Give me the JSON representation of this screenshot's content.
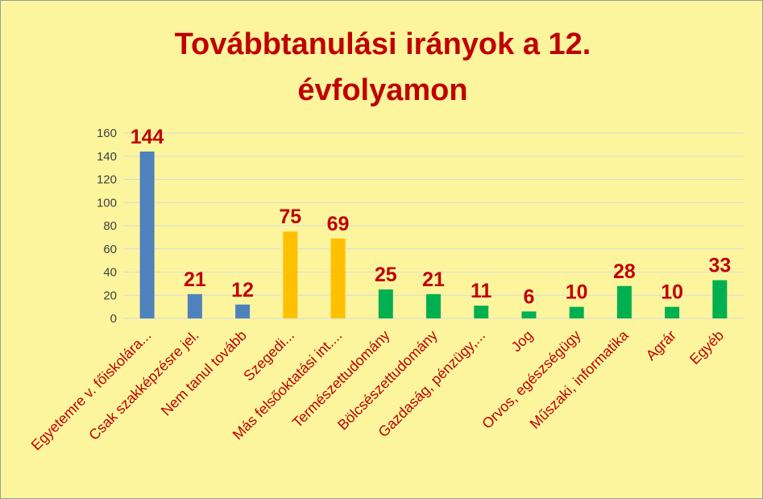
{
  "colors": {
    "background": "#fcf59e",
    "grid": "#d9d9d9",
    "title": "#c00000",
    "labels": "#c00000",
    "blue": "#4f81bd",
    "orange": "#ffc000",
    "green": "#00b050"
  },
  "chart_data": {
    "type": "bar",
    "title_lines": [
      "Továbbtanulási irányok a 12.",
      "évfolyamon"
    ],
    "xlabel": "",
    "ylabel": "",
    "ylim": [
      0,
      160
    ],
    "yticks": [
      0,
      20,
      40,
      60,
      80,
      100,
      120,
      140,
      160
    ],
    "grid": true,
    "legend": false,
    "categories": [
      "Egyetemre v. főiskolára...",
      "Csak szakképzésre  jel.",
      "Nem tanul tovább",
      "Szegedi...",
      "Más felsőoktatási int....",
      "Természettudomány",
      "Bölcsészettudomány",
      "Gazdaság, pénzügy,...",
      "Jog",
      "Orvos, egészségügy",
      "Műszaki, informatika",
      "Agrár",
      "Egyéb"
    ],
    "values": [
      144,
      21,
      12,
      75,
      69,
      25,
      21,
      11,
      6,
      10,
      28,
      10,
      33
    ],
    "bar_colors": [
      "#4f81bd",
      "#4f81bd",
      "#4f81bd",
      "#ffc000",
      "#ffc000",
      "#00b050",
      "#00b050",
      "#00b050",
      "#00b050",
      "#00b050",
      "#00b050",
      "#00b050",
      "#00b050"
    ]
  }
}
